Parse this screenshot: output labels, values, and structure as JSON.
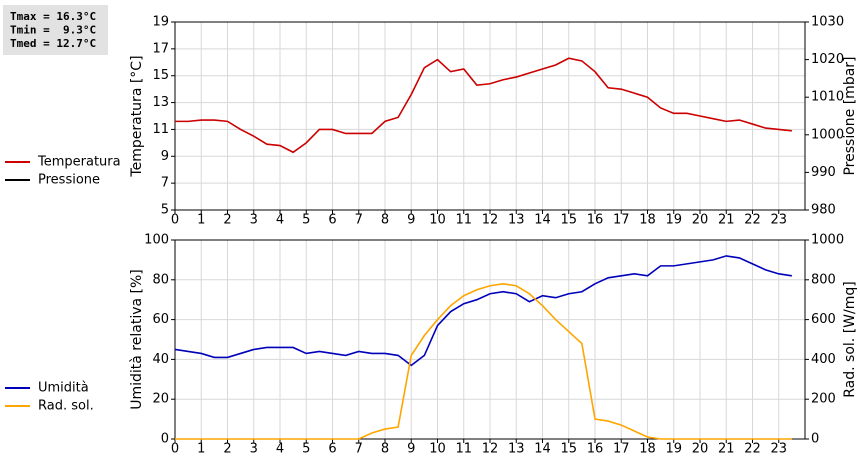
{
  "chart_data": [
    {
      "type": "line",
      "annotations": [
        "Tmax = 16.3°C",
        "Tmin =  9.3°C",
        "Tmed = 12.7°C"
      ],
      "y_label": "Temperatura [°C]",
      "y2_label": "Pressione [mbar]",
      "x": [
        0,
        0.5,
        1,
        1.5,
        2,
        2.5,
        3,
        3.5,
        4,
        4.5,
        5,
        5.5,
        6,
        6.5,
        7,
        7.5,
        8,
        8.5,
        9,
        9.5,
        10,
        10.5,
        11,
        11.5,
        12,
        12.5,
        13,
        13.5,
        14,
        14.5,
        15,
        15.5,
        16,
        16.5,
        17,
        17.5,
        18,
        18.5,
        19,
        19.5,
        20,
        20.5,
        21,
        21.5,
        22,
        22.5,
        23,
        23.5
      ],
      "xlim": [
        0,
        24
      ],
      "xticks": [
        0,
        1,
        2,
        3,
        4,
        5,
        6,
        7,
        8,
        9,
        10,
        11,
        12,
        13,
        14,
        15,
        16,
        17,
        18,
        19,
        20,
        21,
        22,
        23
      ],
      "ylim": [
        5,
        19
      ],
      "yticks": [
        5,
        7,
        9,
        11,
        13,
        15,
        17,
        19
      ],
      "y2lim": [
        980,
        1030
      ],
      "y2ticks": [
        980,
        990,
        1000,
        1010,
        1020,
        1030
      ],
      "grid": true,
      "legend": "left",
      "series": [
        {
          "name": "Temperatura",
          "color": "#cc0000",
          "values": [
            11.6,
            11.6,
            11.7,
            11.7,
            11.6,
            11.0,
            10.5,
            9.9,
            9.8,
            9.3,
            10.0,
            11.0,
            11.0,
            10.7,
            10.7,
            10.7,
            11.6,
            11.9,
            13.6,
            15.6,
            16.2,
            15.3,
            15.5,
            14.3,
            14.4,
            14.7,
            14.9,
            15.2,
            15.5,
            15.8,
            16.3,
            16.1,
            15.3,
            14.1,
            14.0,
            13.7,
            13.4,
            12.6,
            12.2,
            12.2,
            12.0,
            11.8,
            11.6,
            11.7,
            11.4,
            11.1,
            11.0,
            10.9
          ]
        },
        {
          "name": "Pressione",
          "color": "#000000",
          "axis": "y2",
          "values": [
            null,
            null,
            null,
            null,
            null,
            null,
            null,
            null,
            null,
            null,
            null,
            null,
            null,
            null,
            null,
            null,
            null,
            null,
            null,
            null,
            null,
            null,
            null,
            null,
            null,
            null,
            null,
            null,
            null,
            null,
            null,
            null,
            null,
            null,
            null,
            null,
            null,
            null,
            null,
            null,
            null,
            null,
            null,
            null,
            null,
            null,
            null,
            null
          ]
        }
      ]
    },
    {
      "type": "line",
      "y_label": "Umidità relativa [%]",
      "y2_label": "Rad. sol. [W/mq]",
      "x": [
        0,
        0.5,
        1,
        1.5,
        2,
        2.5,
        3,
        3.5,
        4,
        4.5,
        5,
        5.5,
        6,
        6.5,
        7,
        7.5,
        8,
        8.5,
        9,
        9.5,
        10,
        10.5,
        11,
        11.5,
        12,
        12.5,
        13,
        13.5,
        14,
        14.5,
        15,
        15.5,
        16,
        16.5,
        17,
        17.5,
        18,
        18.5,
        19,
        19.5,
        20,
        20.5,
        21,
        21.5,
        22,
        22.5,
        23,
        23.5
      ],
      "xlim": [
        0,
        24
      ],
      "xticks": [
        0,
        1,
        2,
        3,
        4,
        5,
        6,
        7,
        8,
        9,
        10,
        11,
        12,
        13,
        14,
        15,
        16,
        17,
        18,
        19,
        20,
        21,
        22,
        23
      ],
      "ylim": [
        0,
        100
      ],
      "yticks": [
        0,
        20,
        40,
        60,
        80,
        100
      ],
      "y2lim": [
        0,
        1000
      ],
      "y2ticks": [
        0,
        200,
        400,
        600,
        800,
        1000
      ],
      "grid": true,
      "legend": "left",
      "series": [
        {
          "name": "Umidità",
          "color": "#0000bb",
          "values": [
            45,
            44,
            43,
            41,
            41,
            43,
            45,
            46,
            46,
            46,
            43,
            44,
            43,
            42,
            44,
            43,
            43,
            42,
            37,
            42,
            57,
            64,
            68,
            70,
            73,
            74,
            73,
            69,
            72,
            71,
            73,
            74,
            78,
            81,
            82,
            83,
            82,
            87,
            87,
            88,
            89,
            90,
            92,
            91,
            88,
            85,
            83,
            82
          ]
        },
        {
          "name": "Rad. sol.",
          "color": "#ffa500",
          "axis": "y2",
          "values": [
            0,
            0,
            0,
            0,
            0,
            0,
            0,
            0,
            0,
            0,
            0,
            0,
            0,
            0,
            0,
            30,
            50,
            60,
            420,
            520,
            600,
            670,
            720,
            750,
            770,
            780,
            770,
            730,
            670,
            600,
            540,
            480,
            100,
            90,
            70,
            40,
            10,
            0,
            0,
            0,
            0,
            0,
            0,
            0,
            0,
            0,
            0,
            0
          ]
        }
      ]
    }
  ]
}
